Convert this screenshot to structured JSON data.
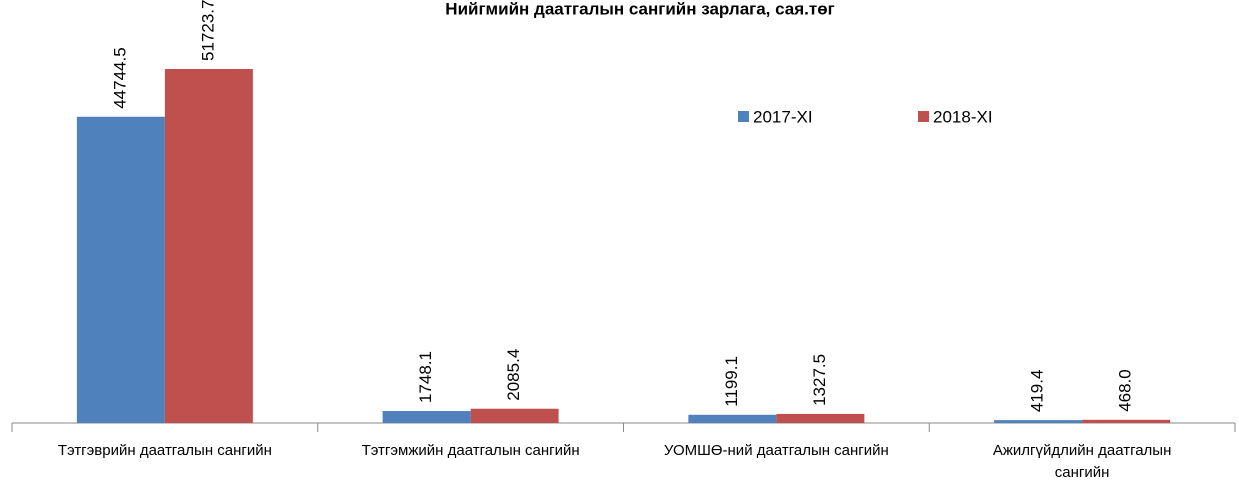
{
  "chart_data": {
    "type": "bar",
    "title": "Нийгмийн даатгалын сангийн зарлага, сая.төг",
    "categories": [
      "Тэтгэврийн даатгалын сангийн",
      "Тэтгэмжийн даатгалын сангийн",
      "УОМШӨ-ний даатгалын сангийн",
      "Ажилгүйдлийн даатгалын сангийн"
    ],
    "series": [
      {
        "name": "2017-XI",
        "color": "#4f81bd",
        "values": [
          44744.5,
          1748.1,
          1199.1,
          419.4
        ],
        "value_labels": [
          "44744.5",
          "1748.1",
          "1199.1",
          "419.4"
        ]
      },
      {
        "name": "2018-XI",
        "color": "#c0504d",
        "values": [
          51723.7,
          2085.4,
          1327.5,
          468.0
        ],
        "value_labels": [
          "51723.7",
          "2085.4",
          "1327.5",
          "468.0"
        ]
      }
    ],
    "legend": "top-right"
  }
}
